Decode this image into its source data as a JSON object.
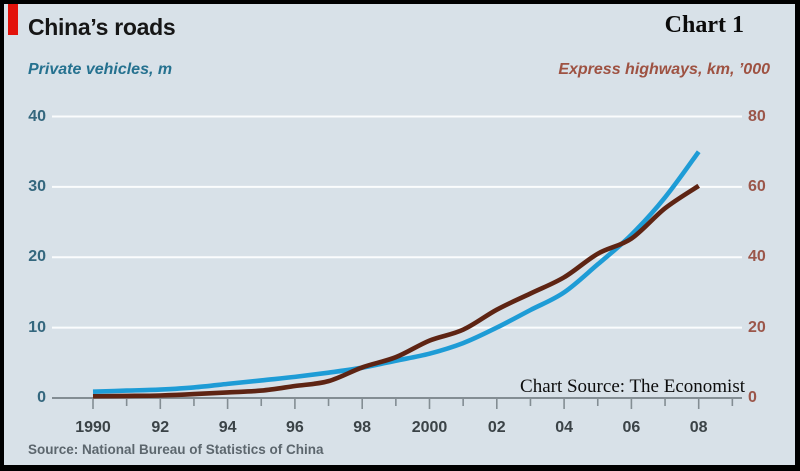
{
  "header": {
    "title": "China’s roads",
    "chart_label": "Chart 1"
  },
  "axes": {
    "left_title": "Private vehicles, m",
    "right_title": "Express highways, km, ’000"
  },
  "annotations": {
    "watermark": "Chart Source: The Economist"
  },
  "footer": {
    "source": "Source: National Bureau of Statistics of China"
  },
  "colors": {
    "background": "#d8e1e8",
    "frame": "#000000",
    "accent_red": "#e3120b",
    "vehicles_line": "#1e9cd6",
    "highways_line": "#5e2413",
    "left_axis_text": "#34677e",
    "right_axis_text": "#9b564a",
    "left_title_text": "#25718f",
    "right_title_text": "#9e5242",
    "x_axis_text": "#3b4347",
    "gridline": "#fafcfd",
    "axis_line": "#838d93"
  },
  "chart_data": {
    "type": "line",
    "title": "China’s roads",
    "x": [
      1990,
      1991,
      1992,
      1993,
      1994,
      1995,
      1996,
      1997,
      1998,
      1999,
      2000,
      2001,
      2002,
      2003,
      2004,
      2005,
      2006,
      2007,
      2008
    ],
    "series": [
      {
        "name": "Private vehicles, m",
        "axis": "left",
        "color": "#1e9cd6",
        "values": [
          0.9,
          1.05,
          1.2,
          1.5,
          2.0,
          2.5,
          3.0,
          3.6,
          4.3,
          5.3,
          6.3,
          7.8,
          10.0,
          12.5,
          15.0,
          19.0,
          23.2,
          28.5,
          35.0
        ]
      },
      {
        "name": "Express highways, km, ’000",
        "axis": "right",
        "color": "#5e2413",
        "values": [
          0.5,
          0.6,
          0.7,
          1.1,
          1.6,
          2.1,
          3.4,
          4.8,
          8.7,
          11.6,
          16.3,
          19.4,
          25.1,
          29.7,
          34.3,
          41.0,
          45.3,
          53.9,
          60.3
        ]
      }
    ],
    "left_axis": {
      "label": "Private vehicles, m",
      "ticks": [
        0,
        10,
        20,
        30,
        40
      ],
      "range": [
        0,
        40
      ]
    },
    "right_axis": {
      "label": "Express highways, km, ’000",
      "ticks": [
        0,
        20,
        40,
        60,
        80
      ],
      "range": [
        0,
        80
      ]
    },
    "x_axis": {
      "tick_years": [
        1990,
        1991,
        1992,
        1993,
        1994,
        1995,
        1996,
        1997,
        1998,
        1999,
        2000,
        2001,
        2002,
        2003,
        2004,
        2005,
        2006,
        2007,
        2008,
        2009
      ],
      "labeled_years": [
        1990,
        1992,
        1994,
        1996,
        1998,
        2000,
        2002,
        2004,
        2006,
        2008
      ],
      "labels": [
        "1990",
        "92",
        "94",
        "96",
        "98",
        "2000",
        "02",
        "04",
        "06",
        "08"
      ]
    },
    "grid": true,
    "legend": "colored axis titles (no legend box)"
  }
}
